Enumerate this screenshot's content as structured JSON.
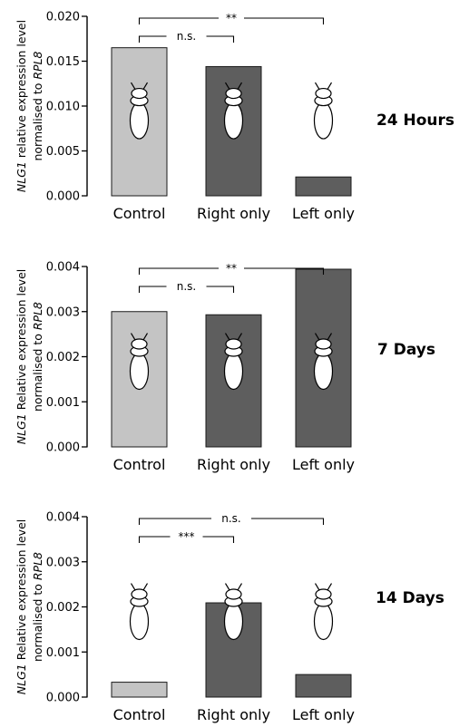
{
  "colors": {
    "control": "#c4c4c4",
    "treated": "#5e5e5e",
    "bar_edge": "#1a1a1a",
    "axis": "#000000"
  },
  "icons": {
    "insect": "termite-silhouette-icon"
  },
  "chart_data": [
    {
      "type": "bar",
      "title": "24 Hours",
      "ylabel_italic": "NLG1",
      "ylabel_text": " relative expression level",
      "ylabel_line2_text": "normalised to ",
      "ylabel_line2_italic": "RPL8",
      "categories": [
        "Control",
        "Right only",
        "Left only"
      ],
      "values": [
        0.0165,
        0.0144,
        0.0021
      ],
      "ylim": [
        0,
        0.02
      ],
      "yticks": [
        "0.000",
        "0.005",
        "0.010",
        "0.015",
        "0.020"
      ],
      "significance": [
        {
          "from": 0,
          "to": 1,
          "label": "n.s."
        },
        {
          "from": 0,
          "to": 2,
          "label": "**"
        }
      ]
    },
    {
      "type": "bar",
      "title": "7 Days",
      "ylabel_italic": "NLG1",
      "ylabel_text": " Relative expression level",
      "ylabel_line2_text": "normalised to ",
      "ylabel_line2_italic": "RPL8",
      "categories": [
        "Control",
        "Right only",
        "Left only"
      ],
      "values": [
        0.003,
        0.00293,
        0.00394
      ],
      "ylim": [
        0,
        0.004
      ],
      "yticks": [
        "0.000",
        "0.001",
        "0.002",
        "0.003",
        "0.004"
      ],
      "significance": [
        {
          "from": 0,
          "to": 1,
          "label": "n.s."
        },
        {
          "from": 0,
          "to": 2,
          "label": "**"
        }
      ]
    },
    {
      "type": "bar",
      "title": "14 Days",
      "ylabel_italic": "NLG1",
      "ylabel_text": " Relative expression level",
      "ylabel_line2_text": "normalised to ",
      "ylabel_line2_italic": "RPL8",
      "categories": [
        "Control",
        "Right only",
        "Left only"
      ],
      "values": [
        0.00033,
        0.00209,
        0.0005
      ],
      "ylim": [
        0,
        0.004
      ],
      "yticks": [
        "0.000",
        "0.001",
        "0.002",
        "0.003",
        "0.004"
      ],
      "significance": [
        {
          "from": 0,
          "to": 1,
          "label": "***"
        },
        {
          "from": 0,
          "to": 2,
          "label": "n.s."
        }
      ]
    }
  ]
}
